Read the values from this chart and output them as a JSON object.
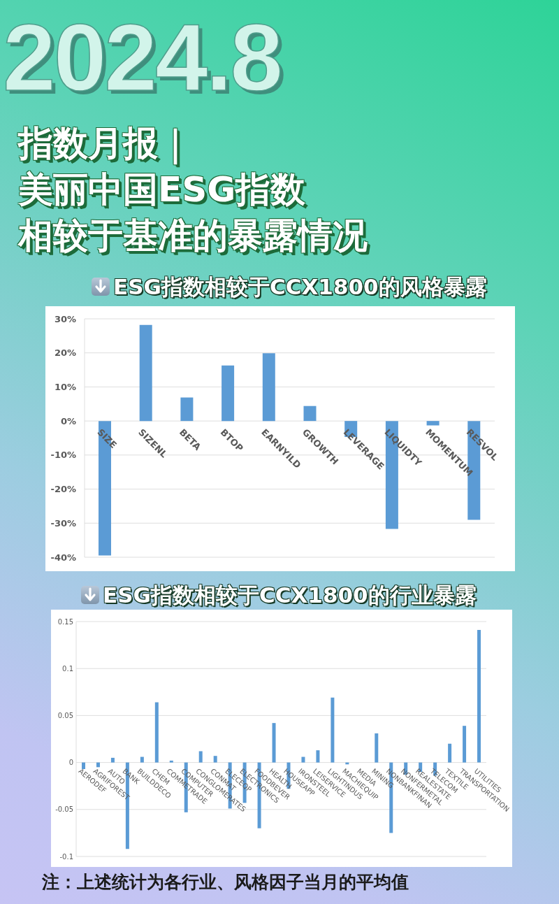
{
  "chart_data": [
    {
      "type": "bar",
      "annotations": [
        "2024.8"
      ],
      "title": "指数月报｜美丽中国ESG指数相较于基准的暴露情况",
      "subtitle": "ESG指数相较于CCX1800的风格暴露",
      "categories": [
        "SIZE",
        "SIZENL",
        "BETA",
        "BTOP",
        "EARNYILD",
        "GROWTH",
        "LEVERAGE",
        "LIQUIDTY",
        "MOMENTUM",
        "RESVOL"
      ],
      "values": [
        -39.5,
        28.2,
        6.9,
        16.3,
        19.9,
        4.4,
        -4.7,
        -31.7,
        -1.3,
        -29.0
      ],
      "color": "#5b9bd5",
      "ylim": [
        -40,
        30
      ],
      "yticks": [
        {
          "value": -40,
          "label": "-40%"
        },
        {
          "value": -30,
          "label": "-30%"
        },
        {
          "value": -20,
          "label": "-20%"
        },
        {
          "value": -10,
          "label": "-10%"
        },
        {
          "value": 0,
          "label": "0%"
        },
        {
          "value": 10,
          "label": "10%"
        },
        {
          "value": 20,
          "label": "20%"
        },
        {
          "value": 30,
          "label": "30%"
        }
      ],
      "grid": "y"
    },
    {
      "type": "bar",
      "title": "ESG指数相较于CCX1800的行业暴露",
      "annotations": [
        "注：上述统计为各行业、风格因子当月的平均值"
      ],
      "categories": [
        "AERODEF",
        "AGRIFOREST",
        "AUTO",
        "BANK",
        "BUILDDECO",
        "CHEM",
        "COMMETRADE",
        "COMPUTER",
        "CONGLOMERATES",
        "CONMAT",
        "ELECEQP",
        "ELECTRONICS",
        "FOODBEVER",
        "HEALTH",
        "HOUSEAPP",
        "IRONSTEEL",
        "LEISERVICE",
        "LIGHTINDUS",
        "MACHIEQUIP",
        "MEDIA",
        "MINING",
        "NONBANKFINAN",
        "NONFERMETAL",
        "REALESTATE",
        "TELECOM",
        "TEXTILE",
        "TRANSPORTATION",
        "UTILITIES"
      ],
      "values": [
        -0.007,
        -0.005,
        0.005,
        -0.092,
        0.006,
        0.064,
        0.002,
        -0.053,
        0.012,
        0.007,
        -0.049,
        -0.043,
        -0.07,
        0.042,
        -0.028,
        0.006,
        0.013,
        0.069,
        -0.002,
        0,
        0.031,
        -0.075,
        -0.013,
        -0.01,
        -0.014,
        0.02,
        0.039,
        0.141
      ],
      "color": "#5b9bd5",
      "ylim": [
        -0.1,
        0.15
      ],
      "yticks": [
        -0.1,
        -0.05,
        0,
        0.05,
        0.1,
        0.15
      ],
      "grid": "y"
    }
  ]
}
